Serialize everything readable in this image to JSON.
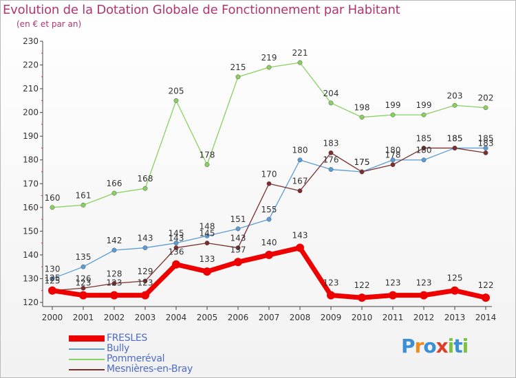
{
  "title": "Evolution de la Dotation Globale de Fonctionnement par Habitant",
  "subtitle": "(en € et par an)",
  "logo": [
    "P",
    "r",
    "o",
    "x",
    "i",
    "t",
    "i"
  ],
  "logo_colors": [
    "#3b8fd6",
    "#f08a1e",
    "#3b8fd6",
    "#e23b2a",
    "#7cc242",
    "#3b8fd6",
    "#7cc242"
  ],
  "chart_data": {
    "type": "line",
    "x": [
      "2000",
      "2001",
      "2002",
      "2003",
      "2004",
      "2005",
      "2006",
      "2007",
      "2008",
      "2009",
      "2010",
      "2011",
      "2012",
      "2013",
      "2014"
    ],
    "ylim": [
      120,
      230
    ],
    "yticks": [
      "120",
      "130",
      "140",
      "150",
      "160",
      "170",
      "180",
      "190",
      "200",
      "210",
      "220",
      "230"
    ],
    "grid": false,
    "legend": "bottom-left",
    "series": [
      {
        "name": "FRESLES",
        "color": "#ee0000",
        "values": [
          125,
          123,
          123,
          123,
          136,
          133,
          137,
          140,
          143,
          123,
          122,
          123,
          123,
          125,
          122
        ],
        "labels": [
          "125",
          "123",
          "123",
          "123",
          "136",
          "133",
          "137",
          "140",
          "143",
          "123",
          "122",
          "123",
          "123",
          "125",
          "122"
        ]
      },
      {
        "name": "Bully",
        "color": "#5b9bd5",
        "values": [
          130,
          135,
          142,
          143,
          145,
          148,
          151,
          155,
          180,
          176,
          175,
          180,
          180,
          185,
          185
        ],
        "labels": [
          "130",
          "135",
          "142",
          "143",
          "145",
          "148",
          "151",
          "155",
          "180",
          "176",
          "175",
          "180",
          "180",
          "185",
          "185"
        ]
      },
      {
        "name": "Pommeréval",
        "color": "#88d060",
        "values": [
          160,
          161,
          166,
          168,
          205,
          178,
          215,
          219,
          221,
          204,
          198,
          199,
          199,
          203,
          202
        ],
        "labels": [
          "160",
          "161",
          "166",
          "168",
          "205",
          "178",
          "215",
          "219",
          "221",
          "204",
          "198",
          "199",
          "199",
          "203",
          "202"
        ]
      },
      {
        "name": "Mesnières-en-Bray",
        "color": "#7a2e2e",
        "values": [
          125,
          126,
          128,
          129,
          143,
          145,
          143,
          170,
          167,
          183,
          175,
          178,
          185,
          185,
          183
        ],
        "labels": [
          "125",
          "126",
          "128",
          "129",
          "143",
          "145",
          "143",
          "170",
          "167",
          "183",
          "175",
          "178",
          "185",
          "185",
          "183"
        ]
      }
    ]
  }
}
